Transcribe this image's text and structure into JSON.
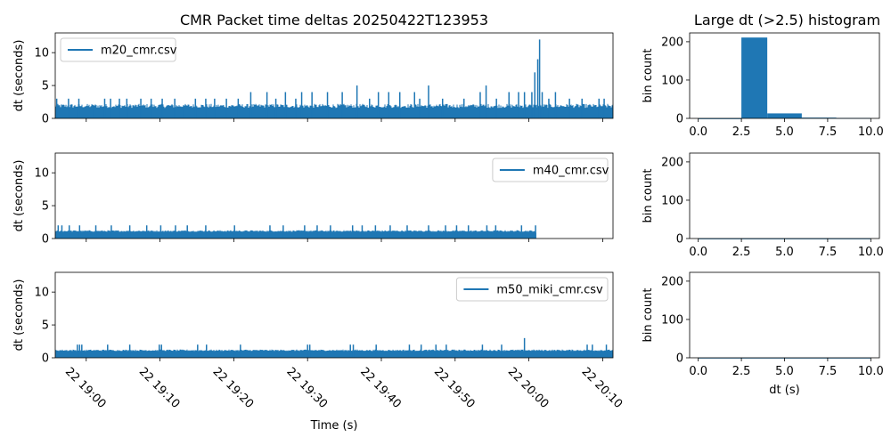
{
  "colors": {
    "series": "#1f77b4"
  },
  "chart_data": [
    {
      "type": "line",
      "title": "CMR Packet time deltas 20250422T123953",
      "xlabel": "",
      "ylabel": "dt (seconds)",
      "ylim": [
        0,
        13
      ],
      "yticks": [
        0,
        5,
        10
      ],
      "xlim": [
        -4.2,
        71.4
      ],
      "x_unit": "minutes after 22 19:00",
      "xtick_values": [
        0,
        10,
        20,
        30,
        40,
        50,
        60,
        70
      ],
      "xtick_labels": [],
      "grid": false,
      "legend_location": "upper left",
      "series": [
        {
          "name": "m20_cmr.csv",
          "range": [
            -4.2,
            71.4
          ],
          "baseline": 1.2,
          "noise_peak": 2.2,
          "spikes": [
            [
              -4,
              3
            ],
            [
              -2.4,
              3
            ],
            [
              -1,
              3
            ],
            [
              1,
              2
            ],
            [
              2.5,
              3
            ],
            [
              3.3,
              3
            ],
            [
              4.5,
              3
            ],
            [
              5.5,
              3
            ],
            [
              7.4,
              3
            ],
            [
              8.8,
              3
            ],
            [
              10.3,
              3
            ],
            [
              12,
              3
            ],
            [
              13.2,
              2
            ],
            [
              14.8,
              3
            ],
            [
              16.2,
              3
            ],
            [
              17.4,
              3
            ],
            [
              19,
              3
            ],
            [
              20.6,
              3
            ],
            [
              22.3,
              4
            ],
            [
              24.5,
              4
            ],
            [
              25.7,
              3
            ],
            [
              27,
              4
            ],
            [
              28.4,
              3
            ],
            [
              29.2,
              4
            ],
            [
              30.6,
              4
            ],
            [
              32.7,
              4
            ],
            [
              34.7,
              4
            ],
            [
              36.7,
              5
            ],
            [
              38.4,
              3
            ],
            [
              39.6,
              4
            ],
            [
              41,
              4
            ],
            [
              42.5,
              4
            ],
            [
              44.5,
              4
            ],
            [
              45.2,
              3
            ],
            [
              46.4,
              5
            ],
            [
              48.3,
              3
            ],
            [
              51.2,
              3
            ],
            [
              53.4,
              4
            ],
            [
              54.2,
              5
            ],
            [
              55.6,
              3
            ],
            [
              57.3,
              4
            ],
            [
              58.6,
              4
            ],
            [
              59.4,
              4
            ],
            [
              60.4,
              4
            ],
            [
              60.8,
              7
            ],
            [
              61.2,
              9
            ],
            [
              61.45,
              12
            ],
            [
              61.8,
              4
            ],
            [
              62.7,
              3
            ],
            [
              63.6,
              4
            ],
            [
              65.5,
              3
            ],
            [
              67.2,
              3
            ],
            [
              69.5,
              3
            ],
            [
              70.2,
              3
            ]
          ]
        }
      ]
    },
    {
      "type": "line",
      "title": "",
      "xlabel": "",
      "ylabel": "dt (seconds)",
      "ylim": [
        0,
        13
      ],
      "yticks": [
        0,
        5,
        10
      ],
      "xlim": [
        -4.2,
        71.4
      ],
      "x_unit": "minutes after 22 19:00",
      "xtick_values": [
        0,
        10,
        20,
        30,
        40,
        50,
        60,
        70
      ],
      "xtick_labels": [],
      "grid": false,
      "legend_location": "upper right",
      "series": [
        {
          "name": "m40_cmr.csv",
          "range": [
            -4.2,
            61.0
          ],
          "baseline": 0.9,
          "noise_peak": 1.25,
          "spikes": [
            [
              -3.8,
              2
            ],
            [
              -3.3,
              2
            ],
            [
              -2.3,
              2
            ],
            [
              -0.9,
              2
            ],
            [
              1.3,
              2
            ],
            [
              3.4,
              2
            ],
            [
              5.9,
              2
            ],
            [
              8.2,
              2
            ],
            [
              10.1,
              2
            ],
            [
              12.1,
              2
            ],
            [
              13.7,
              2
            ],
            [
              16.2,
              2
            ],
            [
              20.1,
              2
            ],
            [
              24.9,
              2
            ],
            [
              26.7,
              2
            ],
            [
              29.6,
              2
            ],
            [
              31.3,
              2
            ],
            [
              33.1,
              2
            ],
            [
              36.1,
              2
            ],
            [
              37.4,
              2
            ],
            [
              39.2,
              2
            ],
            [
              41.2,
              2
            ],
            [
              43.5,
              2
            ],
            [
              46.4,
              2
            ],
            [
              48.7,
              2
            ],
            [
              50.2,
              2
            ],
            [
              51.8,
              2
            ],
            [
              54.3,
              2
            ],
            [
              55.5,
              2
            ],
            [
              59.0,
              2
            ],
            [
              60.9,
              2
            ]
          ]
        }
      ]
    },
    {
      "type": "line",
      "title": "",
      "xlabel": "Time (s)",
      "ylabel": "dt (seconds)",
      "ylim": [
        0,
        13
      ],
      "yticks": [
        0,
        5,
        10
      ],
      "xlim": [
        -4.2,
        71.4
      ],
      "x_unit": "minutes after 22 19:00",
      "xtick_values": [
        0,
        10,
        20,
        30,
        40,
        50,
        60,
        70
      ],
      "xtick_labels": [
        "22 19:00",
        "22 19:10",
        "22 19:20",
        "22 19:30",
        "22 19:40",
        "22 19:50",
        "22 20:00",
        "22 20:10"
      ],
      "grid": false,
      "legend_location": "upper right",
      "series": [
        {
          "name": "m50_miki_cmr.csv",
          "range": [
            -4.2,
            71.4
          ],
          "baseline": 0.9,
          "noise_peak": 1.25,
          "spikes": [
            [
              -1.2,
              2
            ],
            [
              -0.9,
              2
            ],
            [
              -0.6,
              2
            ],
            [
              2.9,
              2
            ],
            [
              5.9,
              2
            ],
            [
              9.9,
              2
            ],
            [
              10.2,
              2
            ],
            [
              15.1,
              2
            ],
            [
              16.3,
              2
            ],
            [
              20.9,
              2
            ],
            [
              30.0,
              2
            ],
            [
              30.3,
              2
            ],
            [
              35.8,
              2
            ],
            [
              36.2,
              2
            ],
            [
              39.3,
              2
            ],
            [
              43.8,
              2
            ],
            [
              45.4,
              2
            ],
            [
              47.4,
              2
            ],
            [
              48.8,
              2
            ],
            [
              53.7,
              2
            ],
            [
              56.3,
              2
            ],
            [
              59.4,
              3
            ],
            [
              67.9,
              2
            ],
            [
              68.6,
              2
            ],
            [
              70.5,
              2
            ]
          ]
        }
      ]
    },
    {
      "type": "bar",
      "title": "Large dt (>2.5) histogram",
      "xlabel": "",
      "ylabel": "bin count",
      "xlim": [
        -0.5,
        10.5
      ],
      "ylim": [
        0,
        223
      ],
      "xticks": [
        0.0,
        2.5,
        5.0,
        7.5,
        10.0
      ],
      "xtick_labels": [
        "0.0",
        "2.5",
        "5.0",
        "7.5",
        "10.0"
      ],
      "yticks": [
        0,
        100,
        200
      ],
      "bin_edges": [
        0.0,
        2.5,
        4.0,
        6.0,
        8.0,
        10.0
      ],
      "values": [
        0,
        211,
        13,
        2,
        1
      ]
    },
    {
      "type": "bar",
      "title": "",
      "xlabel": "",
      "ylabel": "bin count",
      "xlim": [
        -0.5,
        10.5
      ],
      "ylim": [
        0,
        223
      ],
      "xticks": [
        0.0,
        2.5,
        5.0,
        7.5,
        10.0
      ],
      "xtick_labels": [
        "0.0",
        "2.5",
        "5.0",
        "7.5",
        "10.0"
      ],
      "yticks": [
        0,
        100,
        200
      ],
      "bin_edges": [
        0.0,
        10.0
      ],
      "values": [
        0
      ]
    },
    {
      "type": "bar",
      "title": "",
      "xlabel": "dt (s)",
      "ylabel": "bin count",
      "xlim": [
        -0.5,
        10.5
      ],
      "ylim": [
        0,
        223
      ],
      "xticks": [
        0.0,
        2.5,
        5.0,
        7.5,
        10.0
      ],
      "xtick_labels": [
        "0.0",
        "2.5",
        "5.0",
        "7.5",
        "10.0"
      ],
      "yticks": [
        0,
        100,
        200
      ],
      "bin_edges": [
        0.0,
        10.0
      ],
      "values": [
        0
      ]
    }
  ]
}
